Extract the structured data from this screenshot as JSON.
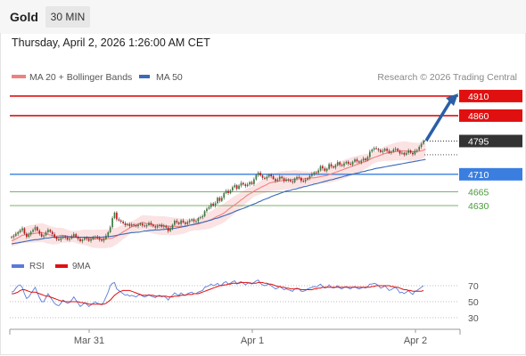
{
  "header": {
    "symbol": "Gold",
    "timeframe": "30 MIN",
    "datetime": "Thursday, April 2, 2026 1:26:00 AM CET"
  },
  "legend": {
    "ma20_label": "MA 20 + Bollinger Bands",
    "ma50_label": "MA 50",
    "credit": "Research © 2026 Trading Central",
    "rsi_label": "RSI",
    "rsi_ma_label": "9MA"
  },
  "colors": {
    "resistance": "#e01010",
    "support": "#3a7ee0",
    "support_minor": "#4a9a3a",
    "candle_up": "#3a7a3a",
    "candle_down": "#c01818",
    "ma20": "#f08080",
    "ma50": "#3a6ab8",
    "bollinger_fill": "#fadcdc",
    "rsi": "#5a7ad8",
    "rsi_ma": "#e01010",
    "arrow": "#2a5fa6",
    "last_price_tag": "#333333"
  },
  "chart_data": {
    "type": "candlestick",
    "ylim": [
      4514,
      4928
    ],
    "x_tick_labels": [
      "Mar 31",
      "Apr 1",
      "Apr 2"
    ],
    "levels": [
      {
        "label": "4910",
        "value": 4910,
        "role": "resistance"
      },
      {
        "label": "4860",
        "value": 4860,
        "role": "resistance"
      },
      {
        "label": "4795",
        "value": 4795,
        "role": "last"
      },
      {
        "label": "4710",
        "value": 4710,
        "role": "support"
      },
      {
        "label": "4665",
        "value": 4665,
        "role": "support_minor"
      },
      {
        "label": "4630",
        "value": 4630,
        "role": "support_minor"
      }
    ],
    "forecast_arrow": {
      "from": 4796,
      "to": 4912
    },
    "closes": [
      4550,
      4553,
      4558,
      4562,
      4567,
      4572,
      4558,
      4550,
      4556,
      4563,
      4568,
      4575,
      4566,
      4558,
      4551,
      4554,
      4562,
      4568,
      4563,
      4557,
      4549,
      4544,
      4542,
      4547,
      4551,
      4548,
      4543,
      4546,
      4552,
      4557,
      4550,
      4545,
      4539,
      4543,
      4547,
      4545,
      4540,
      4544,
      4548,
      4551,
      4547,
      4543,
      4540,
      4545,
      4553,
      4562,
      4575,
      4598,
      4612,
      4595,
      4592,
      4589,
      4585,
      4580,
      4583,
      4578,
      4582,
      4580,
      4577,
      4581,
      4584,
      4579,
      4577,
      4580,
      4586,
      4581,
      4577,
      4574,
      4578,
      4581,
      4576,
      4578,
      4574,
      4565,
      4572,
      4581,
      4591,
      4587,
      4583,
      4592,
      4587,
      4583,
      4588,
      4592,
      4595,
      4590,
      4590,
      4598,
      4600,
      4603,
      4616,
      4622,
      4626,
      4635,
      4630,
      4636,
      4650,
      4642,
      4650,
      4662,
      4668,
      4662,
      4669,
      4677,
      4682,
      4673,
      4681,
      4688,
      4684,
      4680,
      4684,
      4690,
      4685,
      4697,
      4708,
      4714,
      4707,
      4701,
      4699,
      4704,
      4709,
      4705,
      4698,
      4693,
      4697,
      4704,
      4700,
      4693,
      4697,
      4695,
      4692,
      4690,
      4699,
      4703,
      4701,
      4693,
      4692,
      4696,
      4700,
      4706,
      4711,
      4715,
      4714,
      4720,
      4731,
      4725,
      4719,
      4724,
      4736,
      4730,
      4727,
      4733,
      4741,
      4734,
      4732,
      4738,
      4742,
      4737,
      4735,
      4742,
      4748,
      4743,
      4740,
      4745,
      4750,
      4746,
      4754,
      4768,
      4773,
      4777,
      4775,
      4772,
      4767,
      4770,
      4775,
      4770,
      4765,
      4768,
      4773,
      4775,
      4770,
      4763,
      4765,
      4760,
      4765,
      4771,
      4765,
      4761,
      4770,
      4772,
      4780,
      4788,
      4796
    ],
    "ma20": [
      4540,
      4542,
      4545,
      4548,
      4551,
      4554,
      4555,
      4556,
      4557,
      4558,
      4558,
      4559,
      4560,
      4560,
      4561,
      4560,
      4558,
      4556,
      4555,
      4553,
      4553,
      4552,
      4553,
      4554,
      4554,
      4553,
      4552,
      4551,
      4551,
      4551,
      4550,
      4549,
      4549,
      4549,
      4549,
      4548,
      4547,
      4546,
      4545,
      4545,
      4545,
      4545,
      4545,
      4545,
      4545,
      4546,
      4546,
      4547,
      4550,
      4552,
      4556,
      4559,
      4563,
      4566,
      4569,
      4573,
      4576,
      4578,
      4580,
      4582,
      4585,
      4587,
      4586,
      4584,
      4583,
      4582,
      4581,
      4580,
      4580,
      4579,
      4579,
      4579,
      4578,
      4578,
      4577,
      4577,
      4577,
      4577,
      4577,
      4577,
      4577,
      4578,
      4579,
      4580,
      4580,
      4581,
      4582,
      4583,
      4585,
      4587,
      4588,
      4590,
      4592,
      4594,
      4597,
      4600,
      4603,
      4605,
      4608,
      4611,
      4615,
      4620,
      4624,
      4628,
      4632,
      4636,
      4640,
      4645,
      4648,
      4653,
      4657,
      4660,
      4663,
      4667,
      4670,
      4673,
      4676,
      4679,
      4681,
      4684,
      4687,
      4689,
      4690,
      4691,
      4692,
      4693,
      4694,
      4694,
      4695,
      4695,
      4696,
      4697,
      4698,
      4698,
      4698,
      4698,
      4698,
      4699,
      4699,
      4700,
      4701,
      4701,
      4702,
      4703,
      4704,
      4705,
      4706,
      4707,
      4709,
      4711,
      4713,
      4715,
      4717,
      4719,
      4721,
      4723,
      4725,
      4727,
      4729,
      4731,
      4733,
      4735,
      4737,
      4739,
      4741,
      4743,
      4745,
      4748,
      4751,
      4753,
      4755,
      4757,
      4759,
      4761,
      4763,
      4764,
      4765,
      4766,
      4767,
      4768,
      4769,
      4769,
      4770,
      4770,
      4770,
      4769,
      4768,
      4768,
      4768,
      4768,
      4769,
      4770,
      4772,
      4774
    ],
    "ma50": [
      4532,
      4533,
      4534,
      4535,
      4536,
      4537,
      4538,
      4539,
      4540,
      4541,
      4542,
      4543,
      4543,
      4544,
      4545,
      4546,
      4547,
      4547,
      4548,
      4549,
      4549,
      4549,
      4549,
      4550,
      4550,
      4550,
      4550,
      4550,
      4549,
      4549,
      4549,
      4549,
      4549,
      4549,
      4549,
      4549,
      4549,
      4549,
      4549,
      4549,
      4549,
      4549,
      4549,
      4550,
      4550,
      4551,
      4551,
      4552,
      4553,
      4554,
      4555,
      4556,
      4557,
      4558,
      4559,
      4560,
      4561,
      4561,
      4562,
      4562,
      4563,
      4564,
      4565,
      4565,
      4566,
      4567,
      4567,
      4568,
      4568,
      4568,
      4569,
      4569,
      4570,
      4570,
      4571,
      4571,
      4572,
      4573,
      4574,
      4575,
      4576,
      4577,
      4578,
      4580,
      4581,
      4582,
      4584,
      4585,
      4586,
      4587,
      4589,
      4590,
      4592,
      4593,
      4595,
      4597,
      4598,
      4600,
      4602,
      4604,
      4606,
      4608,
      4610,
      4612,
      4615,
      4617,
      4619,
      4621,
      4623,
      4625,
      4627,
      4630,
      4632,
      4634,
      4636,
      4639,
      4641,
      4644,
      4646,
      4648,
      4650,
      4653,
      4655,
      4657,
      4659,
      4661,
      4663,
      4665,
      4667,
      4668,
      4669,
      4671,
      4672,
      4673,
      4675,
      4676,
      4678,
      4679,
      4680,
      4682,
      4683,
      4685,
      4686,
      4687,
      4689,
      4690,
      4692,
      4693,
      4695,
      4696,
      4697,
      4699,
      4700,
      4702,
      4703,
      4705,
      4706,
      4708,
      4709,
      4710,
      4712,
      4713,
      4714,
      4716,
      4717,
      4718,
      4720,
      4721,
      4722,
      4724,
      4725,
      4726,
      4727,
      4728,
      4729,
      4730,
      4731,
      4732,
      4733,
      4734,
      4735,
      4736,
      4737,
      4738,
      4739,
      4740,
      4741,
      4742,
      4743,
      4744,
      4745,
      4746,
      4747,
      4748
    ],
    "rsi": {
      "ylim": [
        20,
        80
      ],
      "ticks": [
        70,
        50,
        30
      ],
      "rsi": [
        62,
        63,
        67,
        70,
        71,
        68,
        60,
        54,
        56,
        60,
        64,
        68,
        61,
        55,
        50,
        50,
        55,
        60,
        56,
        52,
        48,
        46,
        45,
        48,
        52,
        50,
        48,
        49,
        52,
        56,
        52,
        48,
        44,
        46,
        49,
        47,
        44,
        46,
        48,
        50,
        48,
        47,
        46,
        50,
        56,
        62,
        70,
        73,
        74,
        66,
        64,
        62,
        60,
        58,
        59,
        57,
        58,
        57,
        56,
        58,
        59,
        57,
        56,
        57,
        59,
        57,
        56,
        55,
        57,
        58,
        56,
        57,
        55,
        52,
        56,
        58,
        61,
        59,
        58,
        61,
        59,
        58,
        60,
        61,
        62,
        60,
        60,
        62,
        63,
        64,
        68,
        69,
        70,
        72,
        70,
        71,
        73,
        70,
        71,
        74,
        75,
        72,
        73,
        75,
        76,
        72,
        74,
        75,
        73,
        71,
        73,
        74,
        72,
        74,
        76,
        77,
        73,
        71,
        70,
        71,
        72,
        70,
        68,
        66,
        67,
        69,
        67,
        65,
        66,
        65,
        64,
        63,
        66,
        67,
        66,
        63,
        63,
        64,
        66,
        67,
        68,
        69,
        68,
        70,
        72,
        69,
        67,
        68,
        71,
        68,
        67,
        68,
        70,
        67,
        66,
        68,
        69,
        67,
        66,
        68,
        69,
        67,
        66,
        67,
        68,
        67,
        69,
        72,
        72,
        73,
        72,
        70,
        67,
        68,
        70,
        67,
        64,
        65,
        67,
        68,
        65,
        61,
        62,
        60,
        62,
        64,
        61,
        59,
        63,
        64,
        66,
        68,
        70
      ],
      "rsi_ma": [
        60,
        60,
        61,
        62,
        64,
        65,
        65,
        64,
        63,
        62,
        62,
        62,
        61,
        60,
        59,
        58,
        57,
        57,
        56,
        55,
        54,
        53,
        52,
        51,
        51,
        50,
        50,
        50,
        50,
        50,
        50,
        50,
        49,
        49,
        48,
        48,
        47,
        47,
        47,
        47,
        47,
        47,
        47,
        47,
        48,
        50,
        52,
        55,
        58,
        60,
        62,
        63,
        64,
        64,
        64,
        64,
        63,
        62,
        61,
        60,
        59,
        58,
        58,
        58,
        58,
        58,
        58,
        57,
        57,
        57,
        57,
        57,
        57,
        56,
        56,
        56,
        57,
        57,
        57,
        58,
        58,
        58,
        59,
        59,
        59,
        60,
        60,
        60,
        61,
        62,
        63,
        64,
        65,
        66,
        67,
        68,
        69,
        70,
        70,
        71,
        71,
        72,
        72,
        73,
        73,
        73,
        73,
        74,
        74,
        74,
        74,
        73,
        73,
        73,
        73,
        74,
        74,
        74,
        73,
        73,
        72,
        72,
        71,
        70,
        69,
        69,
        68,
        68,
        67,
        67,
        66,
        66,
        66,
        66,
        66,
        65,
        65,
        65,
        65,
        65,
        65,
        66,
        66,
        67,
        67,
        68,
        68,
        68,
        68,
        68,
        68,
        68,
        68,
        68,
        68,
        68,
        68,
        68,
        68,
        68,
        68,
        68,
        68,
        68,
        68,
        68,
        68,
        68,
        69,
        69,
        70,
        70,
        70,
        70,
        70,
        70,
        70,
        69,
        69,
        68,
        68,
        67,
        66,
        65,
        65,
        64,
        64,
        63,
        63,
        63,
        63,
        63,
        64
      ]
    }
  }
}
